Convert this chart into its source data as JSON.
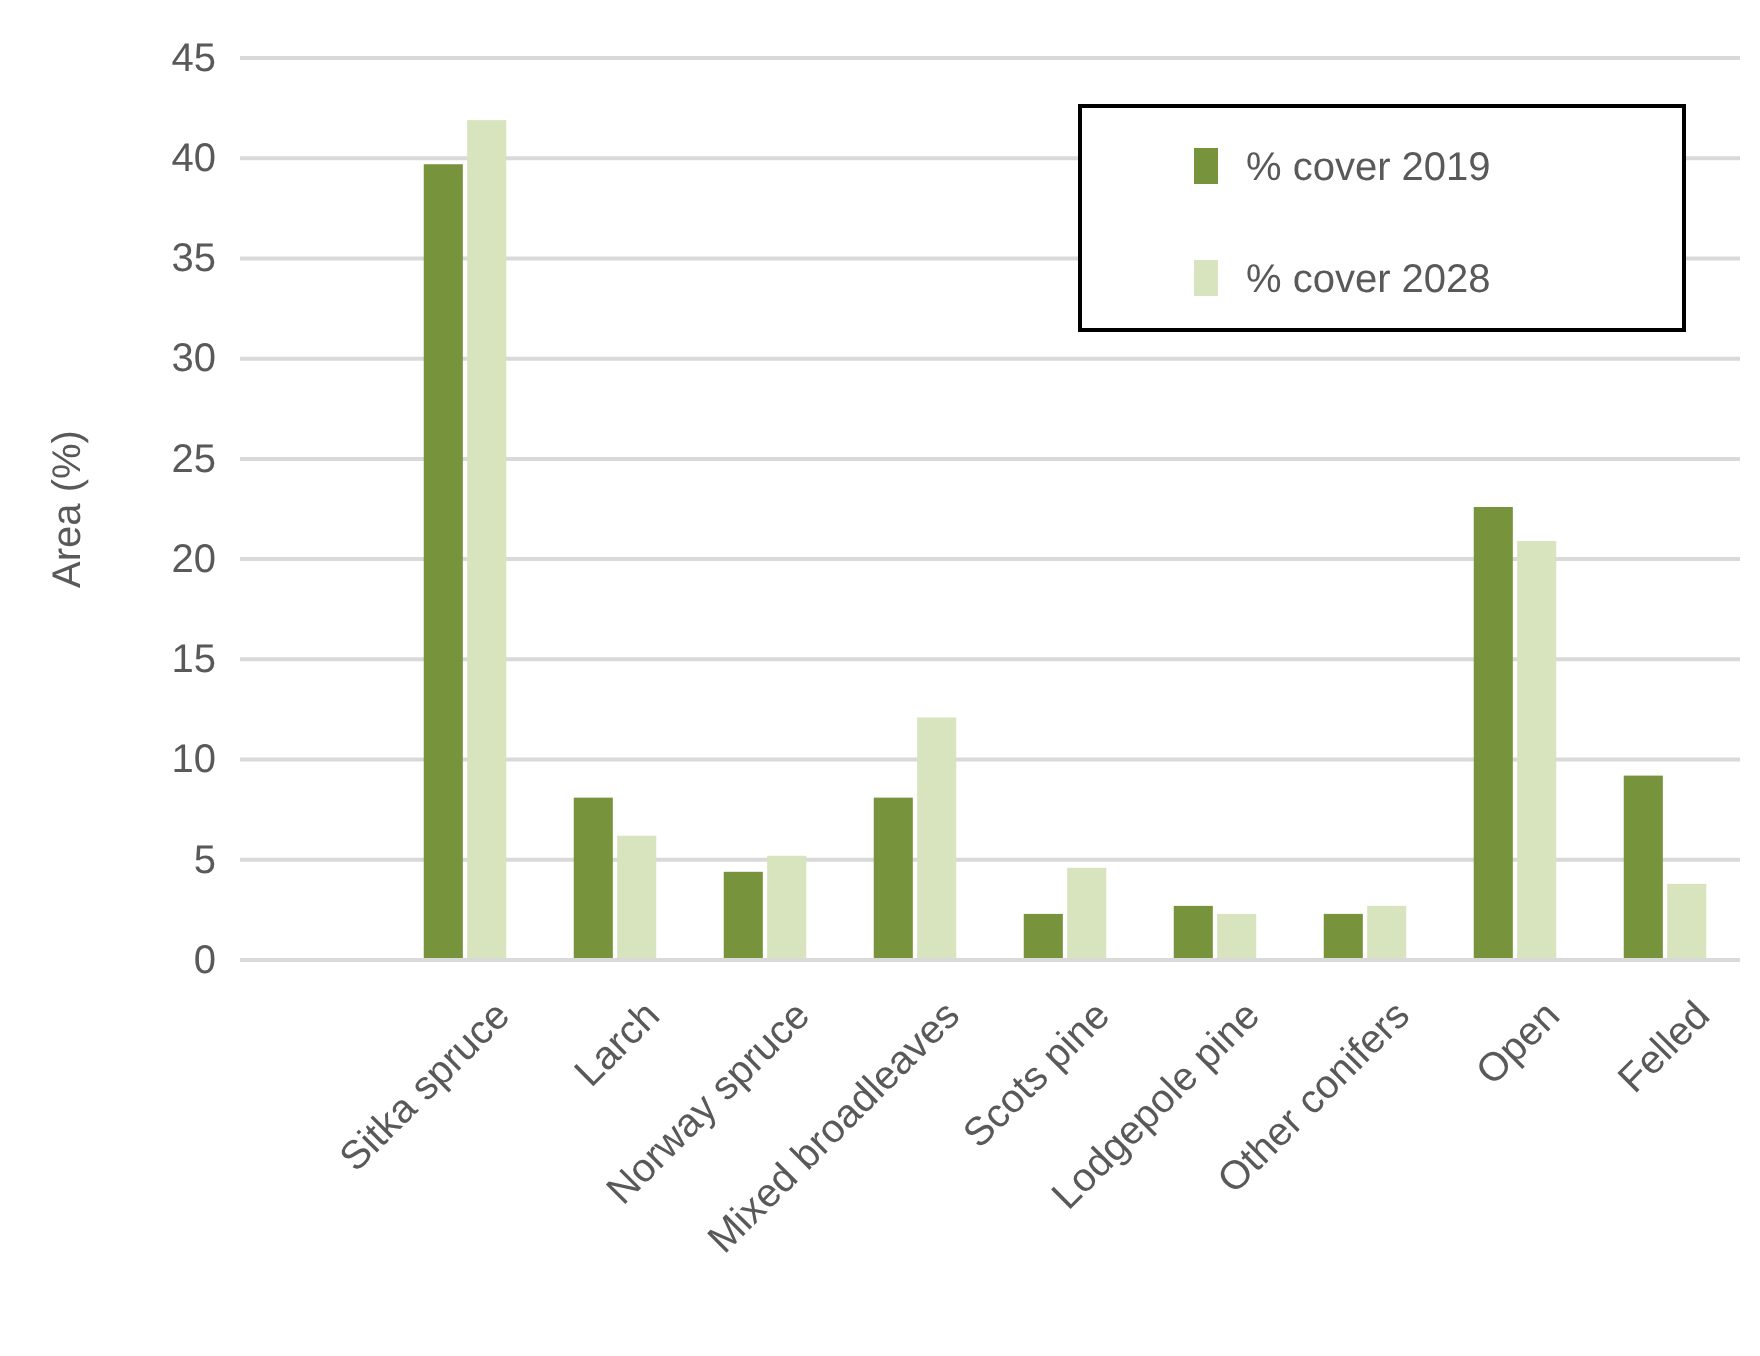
{
  "chart_data": {
    "type": "bar",
    "ylabel": "Area (%)",
    "categories": [
      null,
      "Sitka spruce",
      "Larch",
      "Norway spruce",
      "Mixed broadleaves",
      "Scots pine",
      "Lodgepole pine",
      "Other conifers",
      "Open",
      "Felled"
    ],
    "series": [
      {
        "name": "% cover 2019",
        "color": "#77933c",
        "values": [
          null,
          39.7,
          8.1,
          4.4,
          8.1,
          2.3,
          2.7,
          2.3,
          22.6,
          9.2
        ]
      },
      {
        "name": "% cover 2028",
        "color": "#d7e4bd",
        "values": [
          null,
          41.9,
          6.2,
          5.2,
          12.1,
          4.6,
          2.3,
          2.7,
          20.9,
          3.8
        ]
      }
    ],
    "ylim": [
      0,
      45
    ],
    "yticks": [
      0,
      5,
      10,
      15,
      20,
      25,
      30,
      35,
      40,
      45
    ],
    "grid": "y",
    "legend": "top right"
  }
}
